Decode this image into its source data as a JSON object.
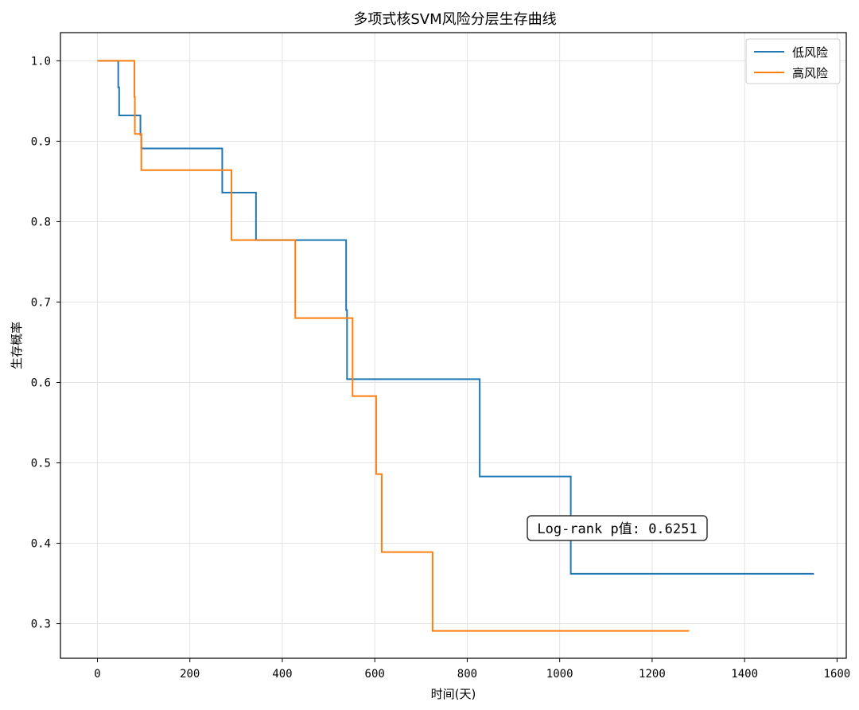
{
  "chart_data": {
    "type": "line",
    "title": "多项式核SVM风险分层生存曲线",
    "xlabel": "时间(天)",
    "ylabel": "生存概率",
    "xlim": [
      -80,
      1620
    ],
    "ylim": [
      0.257,
      1.035
    ],
    "xticks": [
      0,
      200,
      400,
      600,
      800,
      1000,
      1200,
      1400,
      1600
    ],
    "yticks": [
      0.3,
      0.4,
      0.5,
      0.6,
      0.7,
      0.8,
      0.9,
      1.0
    ],
    "xtick_labels": [
      "0",
      "200",
      "400",
      "600",
      "800",
      "1000",
      "1200",
      "1400",
      "1600"
    ],
    "ytick_labels": [
      "0.3",
      "0.4",
      "0.5",
      "0.6",
      "0.7",
      "0.8",
      "0.9",
      "1.0"
    ],
    "grid": true,
    "legend_position": "top-right",
    "step": "post",
    "series": [
      {
        "name": "低风险",
        "color": "#1f77b4",
        "x": [
          0,
          45,
          47,
          93,
          95,
          270,
          343,
          538,
          540,
          827,
          1024,
          1550
        ],
        "y": [
          1.0,
          0.967,
          0.932,
          0.908,
          0.891,
          0.836,
          0.777,
          0.69,
          0.604,
          0.483,
          0.362,
          0.362
        ]
      },
      {
        "name": "高风险",
        "color": "#ff7f0e",
        "x": [
          0,
          80,
          81,
          88,
          95,
          290,
          428,
          552,
          603,
          615,
          725,
          1280
        ],
        "y": [
          1.0,
          0.955,
          0.909,
          0.909,
          0.864,
          0.777,
          0.68,
          0.583,
          0.486,
          0.389,
          0.291,
          0.291
        ]
      }
    ],
    "annotations": [
      {
        "text": "Log-rank p值: 0.6251"
      }
    ]
  }
}
